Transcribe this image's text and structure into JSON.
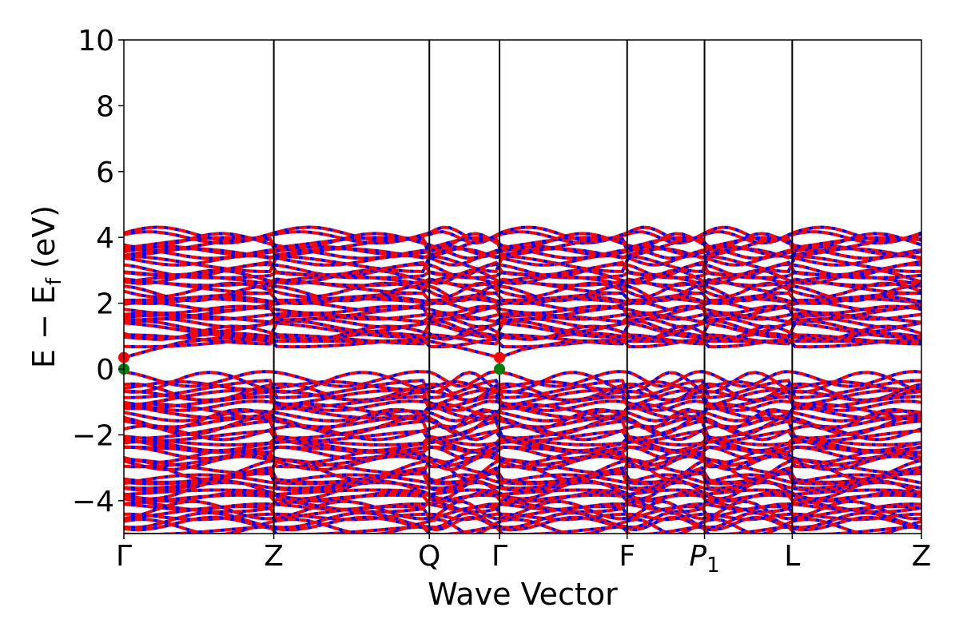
{
  "chart_data": {
    "type": "line",
    "title": "",
    "xlabel": "Wave Vector",
    "ylabel": "E − E",
    "ylabel_subscript": "f",
    "ylabel_unit": " (eV)",
    "ylim": [
      -5,
      10
    ],
    "yticks": [
      -4,
      -2,
      0,
      2,
      4,
      6,
      8,
      10
    ],
    "ytick_labels": [
      "−4",
      "−2",
      "0",
      "2",
      "4",
      "6",
      "8",
      "10"
    ],
    "kpath": [
      {
        "label": "Γ",
        "x": 0.0
      },
      {
        "label": "Z",
        "x": 0.188
      },
      {
        "label": "Q",
        "x": 0.383
      },
      {
        "label": "Γ",
        "x": 0.471
      },
      {
        "label": "F",
        "x": 0.631
      },
      {
        "label": "P",
        "sub": "1",
        "x": 0.728
      },
      {
        "label": "L",
        "x": 0.838
      },
      {
        "label": "Z",
        "x": 1.0
      }
    ],
    "xlim": [
      0,
      1
    ],
    "band_colors": [
      "#ff0000",
      "#0000ff"
    ],
    "valence_region": {
      "top": -0.3,
      "bottom": -4.9
    },
    "conduction_region": {
      "bottom": 0.8,
      "top": 4.1
    },
    "highlight_points": [
      {
        "x": 0.0,
        "y": 0.35,
        "color": "#ff0000"
      },
      {
        "x": 0.0,
        "y": 0.0,
        "color": "#008000"
      },
      {
        "x": 0.471,
        "y": 0.35,
        "color": "#ff0000"
      },
      {
        "x": 0.471,
        "y": 0.0,
        "color": "#008000"
      }
    ]
  }
}
